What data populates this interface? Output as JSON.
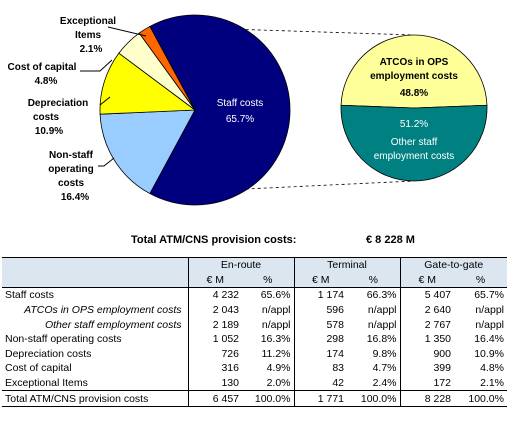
{
  "chart_data": [
    {
      "type": "pie",
      "slices": [
        {
          "label": "Staff costs",
          "value": 65.7,
          "display": "65.7%",
          "color": "#00007f"
        },
        {
          "label": "Non-staff operating costs",
          "value": 16.4,
          "display": "16.4%",
          "color": "#99ccff"
        },
        {
          "label": "Depreciation costs",
          "value": 10.9,
          "display": "10.9%",
          "color": "#ffff00"
        },
        {
          "label": "Cost of capital",
          "value": 4.8,
          "display": "4.8%",
          "color": "#ffffcc"
        },
        {
          "label": "Exceptional Items",
          "value": 2.1,
          "display": "2.1%",
          "color": "#ff6600"
        }
      ]
    },
    {
      "type": "pie",
      "slices": [
        {
          "label": "ATCOs in OPS employment costs",
          "value": 48.8,
          "display": "48.8%",
          "color": "#ffff99"
        },
        {
          "label": "Other staff employment costs",
          "value": 51.2,
          "display": "51.2%",
          "color": "#008080"
        }
      ]
    }
  ],
  "labels": {
    "staff_name": "Staff costs",
    "staff_pct": "65.7%",
    "exceptional_line1": "Exceptional",
    "exceptional_line2": "Items",
    "exceptional_pct": "2.1%",
    "capital_line1": "Cost of capital",
    "capital_pct": "4.8%",
    "depreciation_line1": "Depreciation",
    "depreciation_line2": "costs",
    "depreciation_pct": "10.9%",
    "nonstaff_line1": "Non-staff",
    "nonstaff_line2": "operating",
    "nonstaff_line3": "costs",
    "nonstaff_pct": "16.4%",
    "atco_line1": "ATCOs in OPS",
    "atco_line2": "employment costs",
    "atco_pct": "48.8%",
    "other_pct": "51.2%",
    "other_line1": "Other staff",
    "other_line2": "employment costs"
  },
  "total": {
    "label": "Total ATM/CNS provision costs:",
    "value": "€ 8 228  M"
  },
  "table": {
    "groups": [
      "En-route",
      "Terminal",
      "Gate-to-gate"
    ],
    "units": [
      "€ M",
      "%",
      "€ M",
      "%",
      "€ M",
      "%"
    ],
    "rows": [
      {
        "label": "Staff costs",
        "sub": false,
        "total": false,
        "cells": [
          "4 232",
          "65.6%",
          "1 174",
          "66.3%",
          "5 407",
          "65.7%"
        ]
      },
      {
        "label": "ATCOs in OPS employment costs",
        "sub": true,
        "total": false,
        "cells": [
          "2 043",
          "n/appl",
          "596",
          "n/appl",
          "2 640",
          "n/appl"
        ]
      },
      {
        "label": "Other staff employment costs",
        "sub": true,
        "total": false,
        "cells": [
          "2 189",
          "n/appl",
          "578",
          "n/appl",
          "2 767",
          "n/appl"
        ]
      },
      {
        "label": "Non-staff operating costs",
        "sub": false,
        "total": false,
        "cells": [
          "1 052",
          "16.3%",
          "298",
          "16.8%",
          "1 350",
          "16.4%"
        ]
      },
      {
        "label": "Depreciation costs",
        "sub": false,
        "total": false,
        "cells": [
          "726",
          "11.2%",
          "174",
          "9.8%",
          "900",
          "10.9%"
        ]
      },
      {
        "label": "Cost of capital",
        "sub": false,
        "total": false,
        "cells": [
          "316",
          "4.9%",
          "83",
          "4.7%",
          "399",
          "4.8%"
        ]
      },
      {
        "label": "Exceptional Items",
        "sub": false,
        "total": false,
        "cells": [
          "130",
          "2.0%",
          "42",
          "2.4%",
          "172",
          "2.1%"
        ]
      },
      {
        "label": "Total ATM/CNS provision costs",
        "sub": false,
        "total": true,
        "cells": [
          "6 457",
          "100.0%",
          "1 771",
          "100.0%",
          "8 228",
          "100.0%"
        ]
      }
    ]
  }
}
